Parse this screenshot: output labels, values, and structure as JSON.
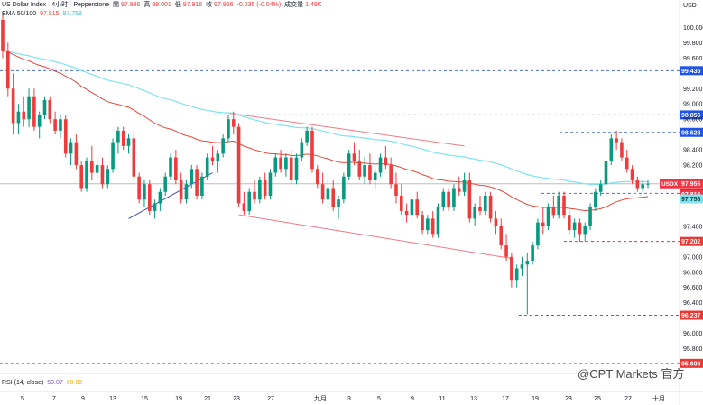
{
  "header": {
    "symbol": "US Dollar Index · 4小时 · Pepperstone",
    "open_label": "開",
    "open": "97.986",
    "high_label": "高",
    "high": "98.001",
    "low_label": "低",
    "low": "97.916",
    "close_label": "收",
    "close": "97.956",
    "change": "-0.035 (-0.04%)",
    "volume_label": "成交量",
    "volume": "1.49K",
    "ema_label": "EMA 50/100",
    "ema50": "97.815",
    "ema100": "97.758",
    "rsi_label": "RSI (14, close)",
    "rsi": "50.07",
    "rsi_ma": "60.89"
  },
  "watermark": "@CPT Markets 官方",
  "colors": {
    "up": "#089981",
    "down": "#ef3b3b",
    "ema50": "#e8473a",
    "ema100": "#7fe3ee",
    "channel": "#f07a86",
    "trend": "#3f51b5",
    "level": "#4a6fd8",
    "level_red": "#e53935",
    "flag_badge": "#2962ff",
    "price_badge": "#f23645"
  },
  "chart_data": {
    "type": "candlestick",
    "y_axis_label": "USD",
    "ylim": [
      95.5,
      100.17
    ],
    "y_ticks": [
      "100.000",
      "99.800",
      "99.600",
      "99.200",
      "99.000",
      "98.800",
      "98.400",
      "98.200",
      "97.400",
      "97.000",
      "96.800",
      "96.600",
      "96.400",
      "96.000",
      "95.800"
    ],
    "x_labels": [
      "5",
      "7",
      "9",
      "13",
      "15",
      "19",
      "21",
      "23",
      "27",
      "九月",
      "3",
      "5",
      "9",
      "11",
      "13",
      "17",
      "19",
      "23",
      "25",
      "27",
      "十月"
    ],
    "horizontal_levels": [
      {
        "price": 99.435,
        "label": "99.435",
        "style": "blue"
      },
      {
        "price": 98.856,
        "label": "98.856",
        "style": "blue"
      },
      {
        "price": 98.628,
        "label": "98.628",
        "style": "blue"
      },
      {
        "price": 97.831,
        "label": "97.831",
        "style": "blue"
      },
      {
        "price": 97.202,
        "label": "97.202",
        "style": "red"
      },
      {
        "price": 96.237,
        "label": "96.237",
        "style": "red"
      },
      {
        "price": 95.608,
        "label": "95.608",
        "style": "red"
      }
    ],
    "badges": [
      {
        "label": "USDX",
        "value": "97.956",
        "color": "#f23645"
      },
      {
        "label": "",
        "value": "97.815",
        "color": "#f23645"
      },
      {
        "label": "",
        "value": "97.758",
        "color": "#7fe3ee"
      }
    ],
    "last_price": 97.956,
    "candles": [
      [
        100.1,
        100.2,
        99.6,
        99.7
      ],
      [
        99.7,
        99.8,
        99.1,
        99.2
      ],
      [
        99.2,
        99.4,
        98.6,
        98.75
      ],
      [
        98.75,
        99.0,
        98.6,
        98.9
      ],
      [
        98.9,
        99.1,
        98.7,
        98.8
      ],
      [
        98.8,
        99.2,
        98.7,
        99.1
      ],
      [
        99.1,
        99.2,
        98.65,
        98.7
      ],
      [
        98.7,
        98.9,
        98.55,
        98.85
      ],
      [
        98.85,
        99.1,
        98.8,
        99.05
      ],
      [
        99.05,
        99.1,
        98.75,
        98.8
      ],
      [
        98.8,
        98.9,
        98.6,
        98.65
      ],
      [
        98.65,
        98.85,
        98.55,
        98.8
      ],
      [
        98.8,
        98.85,
        98.3,
        98.35
      ],
      [
        98.35,
        98.55,
        98.2,
        98.5
      ],
      [
        98.5,
        98.6,
        98.15,
        98.2
      ],
      [
        98.2,
        98.25,
        97.85,
        97.9
      ],
      [
        97.9,
        98.3,
        97.85,
        98.25
      ],
      [
        98.25,
        98.45,
        98.0,
        98.1
      ],
      [
        98.1,
        98.3,
        98.0,
        98.2
      ],
      [
        98.2,
        98.3,
        97.9,
        97.95
      ],
      [
        97.95,
        98.2,
        97.9,
        98.15
      ],
      [
        98.15,
        98.55,
        98.1,
        98.5
      ],
      [
        98.5,
        98.7,
        98.35,
        98.65
      ],
      [
        98.65,
        98.7,
        98.4,
        98.45
      ],
      [
        98.45,
        98.6,
        98.35,
        98.55
      ],
      [
        98.55,
        98.65,
        98.0,
        98.05
      ],
      [
        98.05,
        98.1,
        97.7,
        97.75
      ],
      [
        97.75,
        98.0,
        97.65,
        97.95
      ],
      [
        97.95,
        98.0,
        97.55,
        97.6
      ],
      [
        97.6,
        97.75,
        97.5,
        97.7
      ],
      [
        97.7,
        97.9,
        97.6,
        97.85
      ],
      [
        97.85,
        98.1,
        97.8,
        98.05
      ],
      [
        98.05,
        98.35,
        98.0,
        98.3
      ],
      [
        98.3,
        98.4,
        97.95,
        98.0
      ],
      [
        98.0,
        98.1,
        97.7,
        97.75
      ],
      [
        97.75,
        98.0,
        97.7,
        97.95
      ],
      [
        97.95,
        98.2,
        97.9,
        98.15
      ],
      [
        98.15,
        98.2,
        97.75,
        97.8
      ],
      [
        97.8,
        98.1,
        97.75,
        98.05
      ],
      [
        98.05,
        98.35,
        98.0,
        98.3
      ],
      [
        98.3,
        98.45,
        98.2,
        98.25
      ],
      [
        98.25,
        98.4,
        98.1,
        98.35
      ],
      [
        98.35,
        98.6,
        98.3,
        98.55
      ],
      [
        98.55,
        98.85,
        98.5,
        98.8
      ],
      [
        98.8,
        98.9,
        98.6,
        98.7
      ],
      [
        98.7,
        98.75,
        97.65,
        97.7
      ],
      [
        97.7,
        97.85,
        97.55,
        97.6
      ],
      [
        97.6,
        97.9,
        97.55,
        97.85
      ],
      [
        97.85,
        98.0,
        97.7,
        97.75
      ],
      [
        97.75,
        98.05,
        97.7,
        98.0
      ],
      [
        98.0,
        98.1,
        97.75,
        97.8
      ],
      [
        97.8,
        98.15,
        97.75,
        98.1
      ],
      [
        98.1,
        98.35,
        98.05,
        98.3
      ],
      [
        98.3,
        98.4,
        98.1,
        98.15
      ],
      [
        98.15,
        98.35,
        98.05,
        98.3
      ],
      [
        98.3,
        98.4,
        97.95,
        98.0
      ],
      [
        98.0,
        98.35,
        97.95,
        98.3
      ],
      [
        98.3,
        98.55,
        98.25,
        98.5
      ],
      [
        98.5,
        98.7,
        98.45,
        98.65
      ],
      [
        98.65,
        98.7,
        98.1,
        98.15
      ],
      [
        98.15,
        98.2,
        97.9,
        97.95
      ],
      [
        97.95,
        98.1,
        97.7,
        97.75
      ],
      [
        97.75,
        98.0,
        97.65,
        97.9
      ],
      [
        97.9,
        98.0,
        97.6,
        97.65
      ],
      [
        97.65,
        97.8,
        97.5,
        97.75
      ],
      [
        97.75,
        98.1,
        97.7,
        98.05
      ],
      [
        98.05,
        98.4,
        98.0,
        98.35
      ],
      [
        98.35,
        98.5,
        98.2,
        98.25
      ],
      [
        98.25,
        98.4,
        98.0,
        98.05
      ],
      [
        98.05,
        98.3,
        97.95,
        98.2
      ],
      [
        98.2,
        98.35,
        97.95,
        98.0
      ],
      [
        98.0,
        98.15,
        97.9,
        98.1
      ],
      [
        98.1,
        98.35,
        98.05,
        98.3
      ],
      [
        98.3,
        98.45,
        98.15,
        98.2
      ],
      [
        98.2,
        98.3,
        97.9,
        97.95
      ],
      [
        97.95,
        98.1,
        97.7,
        97.8
      ],
      [
        97.8,
        97.95,
        97.55,
        97.6
      ],
      [
        97.6,
        97.7,
        97.45,
        97.55
      ],
      [
        97.55,
        97.8,
        97.5,
        97.75
      ],
      [
        97.75,
        97.85,
        97.5,
        97.55
      ],
      [
        97.55,
        97.6,
        97.3,
        97.35
      ],
      [
        97.35,
        97.55,
        97.3,
        97.5
      ],
      [
        97.5,
        97.6,
        97.25,
        97.3
      ],
      [
        97.3,
        97.7,
        97.25,
        97.65
      ],
      [
        97.65,
        97.9,
        97.6,
        97.85
      ],
      [
        97.85,
        97.9,
        97.6,
        97.65
      ],
      [
        97.65,
        97.95,
        97.6,
        97.9
      ],
      [
        97.9,
        98.05,
        97.8,
        97.85
      ],
      [
        97.85,
        98.1,
        97.8,
        98.0
      ],
      [
        98.0,
        98.1,
        97.45,
        97.5
      ],
      [
        97.5,
        97.7,
        97.4,
        97.65
      ],
      [
        97.65,
        97.8,
        97.55,
        97.6
      ],
      [
        97.6,
        97.85,
        97.55,
        97.8
      ],
      [
        97.8,
        97.85,
        97.45,
        97.5
      ],
      [
        97.5,
        97.6,
        97.3,
        97.4
      ],
      [
        97.4,
        97.5,
        97.1,
        97.15
      ],
      [
        97.15,
        97.3,
        96.95,
        97.0
      ],
      [
        97.0,
        97.05,
        96.6,
        96.7
      ],
      [
        96.7,
        96.9,
        96.6,
        96.85
      ],
      [
        96.85,
        97.0,
        96.75,
        96.9
      ],
      [
        96.9,
        97.05,
        96.25,
        96.95
      ],
      [
        96.95,
        97.2,
        96.9,
        97.15
      ],
      [
        97.15,
        97.5,
        97.1,
        97.45
      ],
      [
        97.45,
        97.65,
        97.3,
        97.4
      ],
      [
        97.4,
        97.7,
        97.35,
        97.65
      ],
      [
        97.65,
        97.8,
        97.5,
        97.55
      ],
      [
        97.55,
        97.85,
        97.5,
        97.8
      ],
      [
        97.8,
        97.85,
        97.5,
        97.55
      ],
      [
        97.55,
        97.6,
        97.3,
        97.35
      ],
      [
        97.35,
        97.5,
        97.25,
        97.45
      ],
      [
        97.45,
        97.5,
        97.2,
        97.3
      ],
      [
        97.3,
        97.45,
        97.2,
        97.4
      ],
      [
        97.4,
        97.7,
        97.35,
        97.65
      ],
      [
        97.65,
        97.9,
        97.6,
        97.85
      ],
      [
        97.85,
        98.0,
        97.8,
        97.95
      ],
      [
        97.95,
        98.3,
        97.9,
        98.25
      ],
      [
        98.25,
        98.6,
        98.2,
        98.55
      ],
      [
        98.55,
        98.65,
        98.4,
        98.5
      ],
      [
        98.5,
        98.55,
        98.25,
        98.3
      ],
      [
        98.3,
        98.4,
        98.1,
        98.15
      ],
      [
        98.15,
        98.2,
        97.95,
        98.0
      ],
      [
        98.0,
        98.05,
        97.85,
        97.9
      ],
      [
        97.9,
        98.0,
        97.85,
        97.95
      ],
      [
        97.95,
        98.0,
        97.9,
        97.956
      ]
    ]
  }
}
